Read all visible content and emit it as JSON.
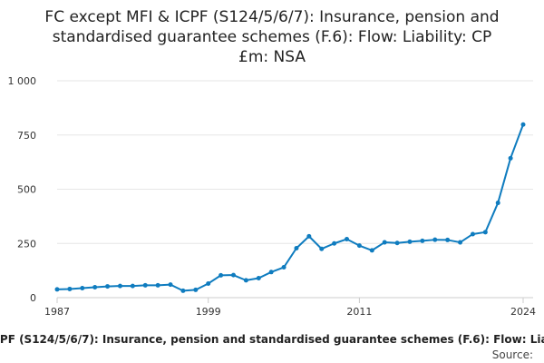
{
  "chart_data": {
    "type": "line",
    "title_lines": [
      "FC except MFI & ICPF (S124/5/6/7): Insurance, pension and",
      "standardised guarantee schemes (F.6): Flow: Liability: CP",
      "£m: NSA"
    ],
    "x": [
      1987,
      1988,
      1989,
      1990,
      1991,
      1992,
      1993,
      1994,
      1995,
      1996,
      1997,
      1998,
      1999,
      2000,
      2001,
      2002,
      2003,
      2004,
      2005,
      2006,
      2007,
      2008,
      2009,
      2010,
      2011,
      2012,
      2013,
      2014,
      2015,
      2016,
      2017,
      2018,
      2019,
      2020,
      2021,
      2022,
      2023,
      2024
    ],
    "series": [
      {
        "name": "FC except MFI & ICPF (S124/5/6/7): Insurance, pension and standardised guarantee schemes (F.6): Flow: Liability: CP £m: NSA",
        "values": [
          38,
          40,
          44,
          48,
          52,
          54,
          54,
          57,
          57,
          60,
          32,
          36,
          65,
          103,
          104,
          80,
          90,
          118,
          140,
          228,
          283,
          225,
          250,
          270,
          240,
          218,
          255,
          252,
          258,
          262,
          267,
          266,
          255,
          293,
          302,
          437,
          643,
          798
        ],
        "color": "#0f7cbf"
      }
    ],
    "x_ticks": [
      1987,
      1999,
      2011,
      2024
    ],
    "x_tick_labels": [
      "1987",
      "1999",
      "2011",
      "2024"
    ],
    "y_ticks": [
      0,
      250,
      500,
      750,
      1000
    ],
    "y_tick_labels": [
      "0",
      "250",
      "500",
      "750",
      "1 000"
    ],
    "ylim": [
      0,
      1000
    ],
    "xlim": [
      1987,
      2024
    ],
    "grid": "horizontal",
    "legend": "bottom",
    "source_label": "Source:"
  }
}
